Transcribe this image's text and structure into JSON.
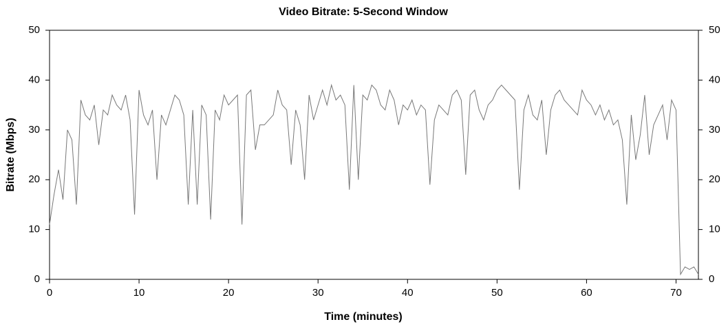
{
  "chart_data": {
    "type": "line",
    "title": "Video Bitrate: 5-Second Window",
    "x_label": "Time (minutes)",
    "y_label": "Bitrate (Mbps)",
    "xlim": [
      0,
      72.5
    ],
    "xticks": [
      0,
      10,
      20,
      30,
      40,
      50,
      60,
      70
    ],
    "ylim": [
      0,
      50
    ],
    "yticks": [
      0,
      10,
      20,
      30,
      40,
      50
    ],
    "y2lim": [
      0,
      50
    ],
    "y2ticks": [
      0,
      10,
      20,
      30,
      40,
      50
    ],
    "grid": false,
    "x": [
      0,
      0.5,
      1,
      1.5,
      2,
      2.5,
      3,
      3.5,
      4,
      4.5,
      5,
      5.5,
      6,
      6.5,
      7,
      7.5,
      8,
      8.5,
      9,
      9.5,
      10,
      10.5,
      11,
      11.5,
      12,
      12.5,
      13,
      13.5,
      14,
      14.5,
      15,
      15.5,
      16,
      16.5,
      17,
      17.5,
      18,
      18.5,
      19,
      19.5,
      20,
      20.5,
      21,
      21.5,
      22,
      22.5,
      23,
      23.5,
      24,
      24.5,
      25,
      25.5,
      26,
      26.5,
      27,
      27.5,
      28,
      28.5,
      29,
      29.5,
      30,
      30.5,
      31,
      31.5,
      32,
      32.5,
      33,
      33.5,
      34,
      34.5,
      35,
      35.5,
      36,
      36.5,
      37,
      37.5,
      38,
      38.5,
      39,
      39.5,
      40,
      40.5,
      41,
      41.5,
      42,
      42.5,
      43,
      43.5,
      44,
      44.5,
      45,
      45.5,
      46,
      46.5,
      47,
      47.5,
      48,
      48.5,
      49,
      49.5,
      50,
      50.5,
      51,
      51.5,
      52,
      52.5,
      53,
      53.5,
      54,
      54.5,
      55,
      55.5,
      56,
      56.5,
      57,
      57.5,
      58,
      58.5,
      59,
      59.5,
      60,
      60.5,
      61,
      61.5,
      62,
      62.5,
      63,
      63.5,
      64,
      64.5,
      65,
      65.5,
      66,
      66.5,
      67,
      67.5,
      68,
      68.5,
      69,
      69.5,
      70,
      70.5,
      71,
      71.5,
      72,
      72.5
    ],
    "series": [
      {
        "color": "#777777",
        "values": [
          11,
          17,
          22,
          16,
          30,
          28,
          15,
          36,
          33,
          32,
          35,
          27,
          34,
          33,
          37,
          35,
          34,
          37,
          32,
          13,
          38,
          33,
          31,
          34,
          20,
          33,
          31,
          34,
          37,
          36,
          33,
          15,
          34,
          15,
          35,
          33,
          12,
          34,
          32,
          37,
          35,
          36,
          37,
          11,
          37,
          38,
          26,
          31,
          31,
          32,
          33,
          38,
          35,
          34,
          23,
          34,
          31,
          20,
          37,
          32,
          35,
          38,
          35,
          39,
          36,
          37,
          35,
          18,
          39,
          20,
          37,
          36,
          39,
          38,
          35,
          34,
          38,
          36,
          31,
          35,
          34,
          36,
          33,
          35,
          34,
          19,
          32,
          35,
          34,
          33,
          37,
          38,
          36,
          21,
          37,
          38,
          34,
          32,
          35,
          36,
          38,
          39,
          38,
          37,
          36,
          18,
          34,
          37,
          33,
          32,
          36,
          25,
          34,
          37,
          38,
          36,
          35,
          34,
          33,
          38,
          36,
          35,
          33,
          35,
          32,
          34,
          31,
          32,
          28,
          15,
          33,
          24,
          29,
          37,
          25,
          31,
          33,
          35,
          28,
          36,
          34,
          1,
          2.5,
          2,
          2.5,
          1
        ]
      }
    ]
  }
}
